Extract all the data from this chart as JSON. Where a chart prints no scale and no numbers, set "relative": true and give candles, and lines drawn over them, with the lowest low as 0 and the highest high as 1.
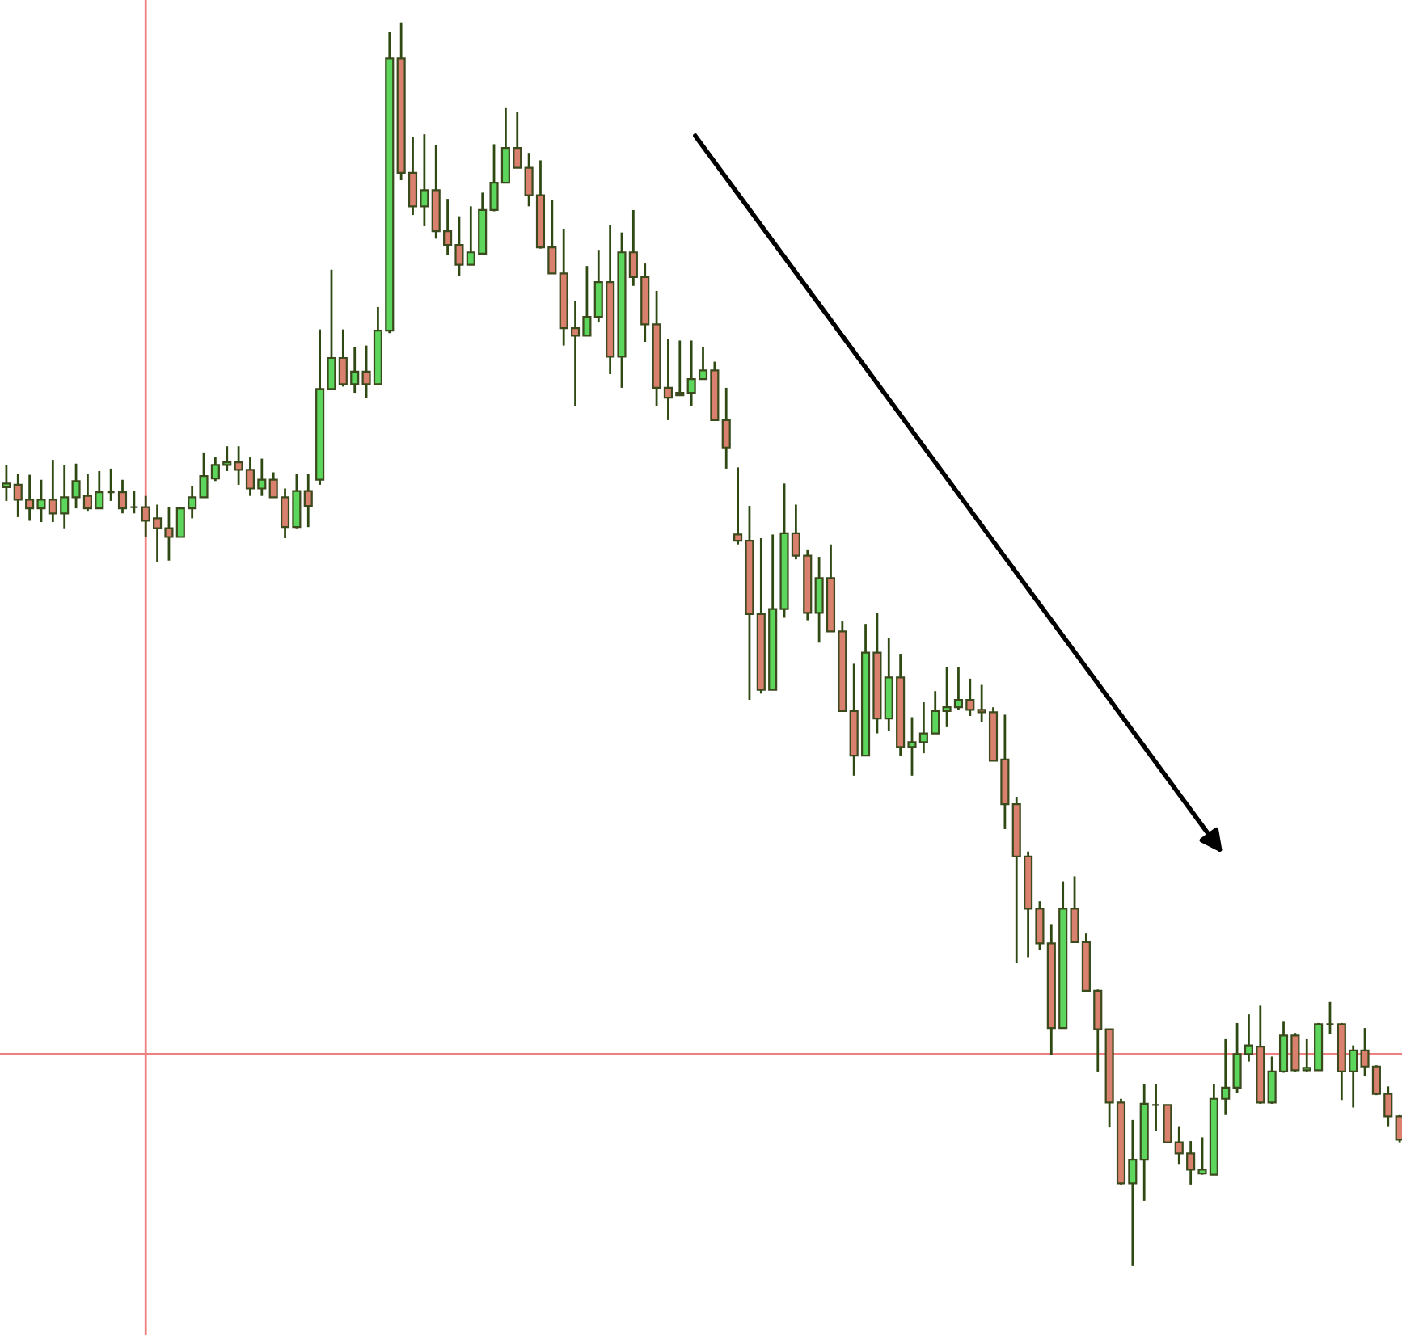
{
  "chart_data": {
    "type": "candlestick",
    "relative": true,
    "categories": [
      null,
      null,
      null,
      null,
      null,
      null,
      null,
      null,
      null,
      null,
      null,
      null,
      null,
      null,
      null,
      null,
      null,
      null,
      null,
      null,
      null,
      null,
      null,
      null,
      null,
      null,
      null,
      null,
      null,
      null,
      null,
      null,
      null,
      null,
      null,
      null,
      null,
      null,
      null,
      null,
      null,
      null,
      null,
      null,
      null,
      null,
      null,
      null,
      null,
      null,
      null,
      null,
      null,
      null,
      null,
      null,
      null,
      null,
      null,
      null,
      null,
      null,
      null,
      null,
      null,
      null,
      null,
      null,
      null,
      null,
      null,
      null,
      null,
      null,
      null,
      null,
      null,
      null,
      null,
      null,
      null,
      null,
      null,
      null,
      null,
      null,
      null,
      null,
      null,
      null,
      null,
      null,
      null,
      null,
      null,
      null,
      null,
      null,
      null,
      null,
      null,
      null,
      null,
      null,
      null,
      null,
      null,
      null,
      null,
      null,
      null,
      null,
      null,
      null,
      null,
      null,
      null,
      null,
      null,
      null,
      null
    ],
    "ohlc": [
      [
        0.626,
        0.644,
        0.615,
        0.629
      ],
      [
        0.628,
        0.637,
        0.602,
        0.616
      ],
      [
        0.616,
        0.636,
        0.599,
        0.609
      ],
      [
        0.609,
        0.632,
        0.598,
        0.616
      ],
      [
        0.616,
        0.648,
        0.598,
        0.605
      ],
      [
        0.605,
        0.644,
        0.593,
        0.618
      ],
      [
        0.618,
        0.645,
        0.609,
        0.631
      ],
      [
        0.619,
        0.637,
        0.607,
        0.609
      ],
      [
        0.609,
        0.639,
        0.609,
        0.622
      ],
      [
        0.622,
        0.641,
        0.615,
        0.622
      ],
      [
        0.622,
        0.632,
        0.605,
        0.609
      ],
      [
        0.61,
        0.623,
        0.605,
        0.61
      ],
      [
        0.61,
        0.619,
        0.586,
        0.599
      ],
      [
        0.601,
        0.612,
        0.566,
        0.593
      ],
      [
        0.593,
        0.61,
        0.567,
        0.586
      ],
      [
        0.586,
        0.609,
        0.586,
        0.609
      ],
      [
        0.609,
        0.627,
        0.601,
        0.618
      ],
      [
        0.618,
        0.654,
        0.618,
        0.635
      ],
      [
        0.633,
        0.65,
        0.631,
        0.644
      ],
      [
        0.644,
        0.659,
        0.639,
        0.646
      ],
      [
        0.646,
        0.659,
        0.628,
        0.64
      ],
      [
        0.64,
        0.65,
        0.619,
        0.625
      ],
      [
        0.625,
        0.649,
        0.619,
        0.632
      ],
      [
        0.632,
        0.638,
        0.618,
        0.618
      ],
      [
        0.618,
        0.625,
        0.585,
        0.594
      ],
      [
        0.594,
        0.637,
        0.593,
        0.623
      ],
      [
        0.623,
        0.637,
        0.594,
        0.611
      ],
      [
        0.632,
        0.753,
        0.628,
        0.705
      ],
      [
        0.705,
        0.801,
        0.704,
        0.73
      ],
      [
        0.73,
        0.753,
        0.707,
        0.709
      ],
      [
        0.709,
        0.739,
        0.702,
        0.719
      ],
      [
        0.719,
        0.74,
        0.698,
        0.709
      ],
      [
        0.709,
        0.771,
        0.709,
        0.752
      ],
      [
        0.752,
        0.992,
        0.75,
        0.971
      ],
      [
        0.971,
        1,
        0.873,
        0.879
      ],
      [
        0.879,
        0.908,
        0.845,
        0.852
      ],
      [
        0.852,
        0.91,
        0.836,
        0.865
      ],
      [
        0.865,
        0.901,
        0.826,
        0.832
      ],
      [
        0.832,
        0.858,
        0.813,
        0.821
      ],
      [
        0.821,
        0.844,
        0.796,
        0.805
      ],
      [
        0.805,
        0.852,
        0.805,
        0.815
      ],
      [
        0.814,
        0.863,
        0.814,
        0.849
      ],
      [
        0.849,
        0.902,
        0.848,
        0.871
      ],
      [
        0.871,
        0.931,
        0.871,
        0.899
      ],
      [
        0.899,
        0.928,
        0.883,
        0.883
      ],
      [
        0.883,
        0.895,
        0.852,
        0.861
      ],
      [
        0.861,
        0.889,
        0.818,
        0.819
      ],
      [
        0.819,
        0.857,
        0.798,
        0.798
      ],
      [
        0.798,
        0.834,
        0.74,
        0.754
      ],
      [
        0.754,
        0.776,
        0.691,
        0.748
      ],
      [
        0.748,
        0.804,
        0.748,
        0.763
      ],
      [
        0.763,
        0.817,
        0.759,
        0.791
      ],
      [
        0.791,
        0.837,
        0.717,
        0.731
      ],
      [
        0.731,
        0.831,
        0.706,
        0.815
      ],
      [
        0.815,
        0.849,
        0.788,
        0.795
      ],
      [
        0.795,
        0.806,
        0.743,
        0.757
      ],
      [
        0.757,
        0.784,
        0.691,
        0.706
      ],
      [
        0.706,
        0.745,
        0.68,
        0.698
      ],
      [
        0.7,
        0.744,
        0.7,
        0.702
      ],
      [
        0.702,
        0.744,
        0.691,
        0.713
      ],
      [
        0.713,
        0.739,
        0.713,
        0.72
      ],
      [
        0.72,
        0.727,
        0.68,
        0.68
      ],
      [
        0.68,
        0.706,
        0.641,
        0.658
      ],
      [
        0.588,
        0.642,
        0.58,
        0.583
      ],
      [
        0.583,
        0.611,
        0.455,
        0.524
      ],
      [
        0.524,
        0.585,
        0.46,
        0.463
      ],
      [
        0.463,
        0.588,
        0.463,
        0.528
      ],
      [
        0.528,
        0.629,
        0.521,
        0.589
      ],
      [
        0.589,
        0.612,
        0.568,
        0.571
      ],
      [
        0.571,
        0.576,
        0.519,
        0.525
      ],
      [
        0.525,
        0.57,
        0.501,
        0.553
      ],
      [
        0.553,
        0.58,
        0.51,
        0.51
      ],
      [
        0.51,
        0.518,
        0.446,
        0.446
      ],
      [
        0.446,
        0.484,
        0.394,
        0.41
      ],
      [
        0.41,
        0.516,
        0.41,
        0.493
      ],
      [
        0.493,
        0.525,
        0.428,
        0.44
      ],
      [
        0.44,
        0.505,
        0.43,
        0.473
      ],
      [
        0.473,
        0.492,
        0.41,
        0.417
      ],
      [
        0.417,
        0.441,
        0.394,
        0.421
      ],
      [
        0.421,
        0.453,
        0.412,
        0.428
      ],
      [
        0.428,
        0.462,
        0.428,
        0.446
      ],
      [
        0.446,
        0.481,
        0.433,
        0.449
      ],
      [
        0.449,
        0.481,
        0.447,
        0.455
      ],
      [
        0.455,
        0.472,
        0.442,
        0.447
      ],
      [
        0.447,
        0.467,
        0.437,
        0.445
      ],
      [
        0.445,
        0.449,
        0.406,
        0.406
      ],
      [
        0.407,
        0.443,
        0.351,
        0.371
      ],
      [
        0.371,
        0.377,
        0.243,
        0.329
      ],
      [
        0.329,
        0.333,
        0.248,
        0.287
      ],
      [
        0.287,
        0.293,
        0.254,
        0.259
      ],
      [
        0.259,
        0.274,
        0.169,
        0.191
      ],
      [
        0.191,
        0.309,
        0.191,
        0.287
      ],
      [
        0.287,
        0.313,
        0.26,
        0.26
      ],
      [
        0.26,
        0.267,
        0.221,
        0.221
      ],
      [
        0.221,
        0.222,
        0.156,
        0.19
      ],
      [
        0.19,
        0.19,
        0.111,
        0.131
      ],
      [
        0.131,
        0.134,
        0.065,
        0.066
      ],
      [
        0.066,
        0.117,
        0,
        0.085
      ],
      [
        0.085,
        0.146,
        0.052,
        0.13
      ],
      [
        0.129,
        0.146,
        0.108,
        0.129
      ],
      [
        0.129,
        0.129,
        0.099,
        0.099
      ],
      [
        0.099,
        0.112,
        0.081,
        0.09
      ],
      [
        0.09,
        0.1,
        0.065,
        0.077
      ],
      [
        0.074,
        0.103,
        0.073,
        0.077
      ],
      [
        0.073,
        0.146,
        0.073,
        0.134
      ],
      [
        0.134,
        0.182,
        0.121,
        0.143
      ],
      [
        0.143,
        0.195,
        0.139,
        0.17
      ],
      [
        0.17,
        0.202,
        0.164,
        0.177
      ],
      [
        0.176,
        0.209,
        0.13,
        0.131
      ],
      [
        0.131,
        0.168,
        0.13,
        0.156
      ],
      [
        0.156,
        0.196,
        0.155,
        0.185
      ],
      [
        0.185,
        0.187,
        0.156,
        0.157
      ],
      [
        0.157,
        0.182,
        0.156,
        0.159
      ],
      [
        0.157,
        0.195,
        0.157,
        0.194
      ],
      [
        0.194,
        0.212,
        0.186,
        0.194
      ],
      [
        0.194,
        0.195,
        0.133,
        0.156
      ],
      [
        0.156,
        0.177,
        0.127,
        0.173
      ],
      [
        0.173,
        0.191,
        0.152,
        0.16
      ],
      [
        0.16,
        0.161,
        0.137,
        0.138
      ],
      [
        0.138,
        0.144,
        0.112,
        0.12
      ],
      [
        0.12,
        0.121,
        0.099,
        0.101
      ]
    ],
    "ref_lines": [
      {
        "axis": "y",
        "value": 0.17,
        "color": "#f08080"
      }
    ]
  }
}
